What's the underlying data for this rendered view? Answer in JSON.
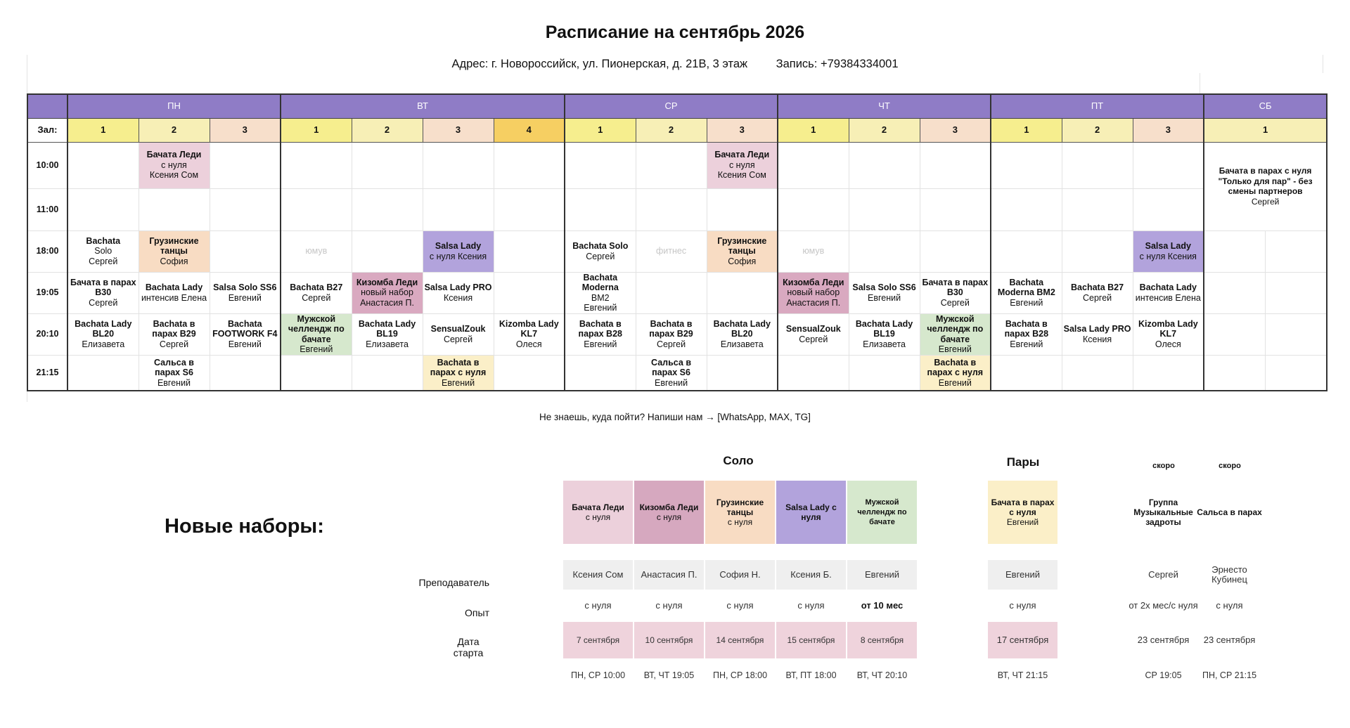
{
  "title": "Расписание на сентябрь 2026",
  "address": "Адрес: г. Новороссийск, ул. Пионерская, д. 21В, 3 этаж",
  "phone": "Запись: +79384334001",
  "hall_label": "Зал:",
  "days": [
    {
      "name": "ПН",
      "halls": [
        "1",
        "2",
        "3"
      ]
    },
    {
      "name": "ВТ",
      "halls": [
        "1",
        "2",
        "3",
        "4"
      ]
    },
    {
      "name": "СР",
      "halls": [
        "1",
        "2",
        "3"
      ]
    },
    {
      "name": "ЧТ",
      "halls": [
        "1",
        "2",
        "3"
      ]
    },
    {
      "name": "ПТ",
      "halls": [
        "1",
        "2",
        "3"
      ]
    },
    {
      "name": "СБ",
      "halls": [
        "1"
      ]
    }
  ],
  "times": [
    "10:00",
    "11:00",
    "18:00",
    "19:05",
    "20:10",
    "21:15"
  ],
  "schedule": {
    "mon_10_h2": [
      "Бачата Леди",
      "с нуля",
      "Ксения Сом"
    ],
    "wed_10_h3": [
      "Бачата Леди",
      "с нуля",
      "Ксения Сом"
    ],
    "sat_10": [
      "Бачата в парах с нуля \"Только для пар\" - без смены партнеров",
      "Сергей"
    ],
    "mon_18_h1": [
      "Bachata",
      "Solo",
      "Сергей"
    ],
    "mon_18_h2": [
      "Грузинские танцы",
      "София"
    ],
    "tue_18_h1": "юмув",
    "tue_18_h3": [
      "Salsa Lady",
      "с нуля Ксения"
    ],
    "wed_18_h1": [
      "Bachata Solo",
      "Сергей"
    ],
    "wed_18_h2": "фитнес",
    "wed_18_h3": [
      "Грузинские танцы",
      "София"
    ],
    "thu_18_h1": "юмув",
    "fri_18_h3": [
      "Salsa Lady",
      "с нуля Ксения"
    ],
    "mon_19_h1": [
      "Бачата в парах B30",
      "Сергей"
    ],
    "mon_19_h2": [
      "Bachata Lady",
      "интенсив Елена"
    ],
    "mon_19_h3": [
      "Salsa Solo SS6",
      "Евгений"
    ],
    "tue_19_h1": [
      "Bachata B27",
      "Сергей"
    ],
    "tue_19_h2": [
      "Кизомба Леди",
      "новый набор",
      "Анастасия П."
    ],
    "tue_19_h3": [
      "Salsa Lady PRO",
      "Ксения"
    ],
    "wed_19_h1": [
      "Bachata Moderna",
      "BM2",
      "Евгений"
    ],
    "thu_19_h1": [
      "Кизомба Леди",
      "новый набор",
      "Анастасия П."
    ],
    "thu_19_h2": [
      "Salsa Solo SS6",
      "Евгений"
    ],
    "thu_19_h3": [
      "Бачата в парах B30",
      "Сергей"
    ],
    "fri_19_h1": [
      "Bachata Moderna BM2",
      "Евгений"
    ],
    "fri_19_h2": [
      "Bachata B27",
      "Сергей"
    ],
    "fri_19_h3": [
      "Bachata Lady",
      "интенсив Елена"
    ],
    "mon_20_h1": [
      "Bachata Lady BL20",
      "Елизавета"
    ],
    "mon_20_h2": [
      "Bachata в парах B29",
      "Сергей"
    ],
    "mon_20_h3": [
      "Bachata FOOTWORK F4",
      "Евгений"
    ],
    "tue_20_h1": [
      "Мужской челлендж по бачате",
      "Евгений"
    ],
    "tue_20_h2": [
      "Bachata Lady BL19",
      "Елизавета"
    ],
    "tue_20_h3": [
      "SensualZouk",
      "Сергей"
    ],
    "tue_20_h4": [
      "Kizomba Lady KL7",
      "Олеся"
    ],
    "wed_20_h1": [
      "Bachata в парах B28",
      "Евгений"
    ],
    "wed_20_h2": [
      "Bachata в парах B29",
      "Сергей"
    ],
    "wed_20_h3": [
      "Bachata Lady BL20",
      "Елизавета"
    ],
    "thu_20_h1": [
      "SensualZouk",
      "Сергей"
    ],
    "thu_20_h2": [
      "Bachata Lady BL19",
      "Елизавета"
    ],
    "thu_20_h3": [
      "Мужской челлендж по бачате",
      "Евгений"
    ],
    "fri_20_h1": [
      "Bachata в парах B28",
      "Евгений"
    ],
    "fri_20_h2": [
      "Salsa Lady PRO",
      "Ксения"
    ],
    "fri_20_h3": [
      "Kizomba Lady KL7",
      "Олеся"
    ],
    "mon_21_h2": [
      "Сальса в парах S6",
      "Евгений"
    ],
    "tue_21_h3": [
      "Bachata в парах с нуля",
      "Евгений"
    ],
    "wed_21_h2": [
      "Сальса в парах S6",
      "Евгений"
    ],
    "thu_21_h3": [
      "Bachata в парах с нуля",
      "Евгений"
    ]
  },
  "note": "Не знаешь, куда пойти? Напиши нам → [WhatsApp, MAX, TG]",
  "new_groups": {
    "title": "Новые наборы:",
    "solo_label": "Соло",
    "pairs_label": "Пары",
    "soon_label": "скоро",
    "row_labels": [
      "Преподаватель",
      "Опыт",
      "Дата старта"
    ],
    "courses": [
      {
        "name": "Бачата Леди",
        "sub": "с нуля",
        "teacher": "Ксения Сом",
        "experience": "с нуля",
        "start": "7 сентября",
        "days": "ПН, СР 10:00",
        "color": "#ecd0db"
      },
      {
        "name": "Кизомба Леди",
        "sub": "с нуля",
        "teacher": "Анастасия П.",
        "experience": "с нуля",
        "start": "10 сентября",
        "days": "ВТ, ЧТ 19:05",
        "color": "#d6a8bf"
      },
      {
        "name": "Грузинские танцы",
        "sub": "с нуля",
        "teacher": "София Н.",
        "experience": "с нуля",
        "start": "14 сентября",
        "days": "ПН, СР 18:00",
        "color": "#f8dcc3"
      },
      {
        "name": "Salsa Lady с нуля",
        "sub": "",
        "teacher": "Ксения Б.",
        "experience": "с нуля",
        "start": "15 сентября",
        "days": "ВТ, ПТ 18:00",
        "color": "#b2a3dc"
      },
      {
        "name": "Мужской челлендж по бачате",
        "sub": "",
        "teacher": "Евгений",
        "experience": "от 10 мес",
        "start": "8 сентября",
        "days": "ВТ, ЧТ 20:10",
        "color": "#d6e8cd"
      },
      {
        "name": "Бачата в парах с нуля",
        "sub": "Евгений",
        "teacher": "Евгений",
        "experience": "с нуля",
        "start": "17 сентября",
        "days": "ВТ, ЧТ 21:15",
        "color": "#fbefc8"
      },
      {
        "name": "Группа Музыкальные задроты",
        "sub": "",
        "teacher": "Сергей",
        "experience": "от 2х мес/с нуля",
        "start": "23 сентября",
        "days": "СР 19:05",
        "color": "#ffffff"
      },
      {
        "name": "Сальса в парах",
        "sub": "",
        "teacher": "Эрнесто Кубинец",
        "experience": "с нуля",
        "start": "23 сентября",
        "days": "ПН, СР 21:15",
        "color": "#ffffff"
      }
    ]
  }
}
